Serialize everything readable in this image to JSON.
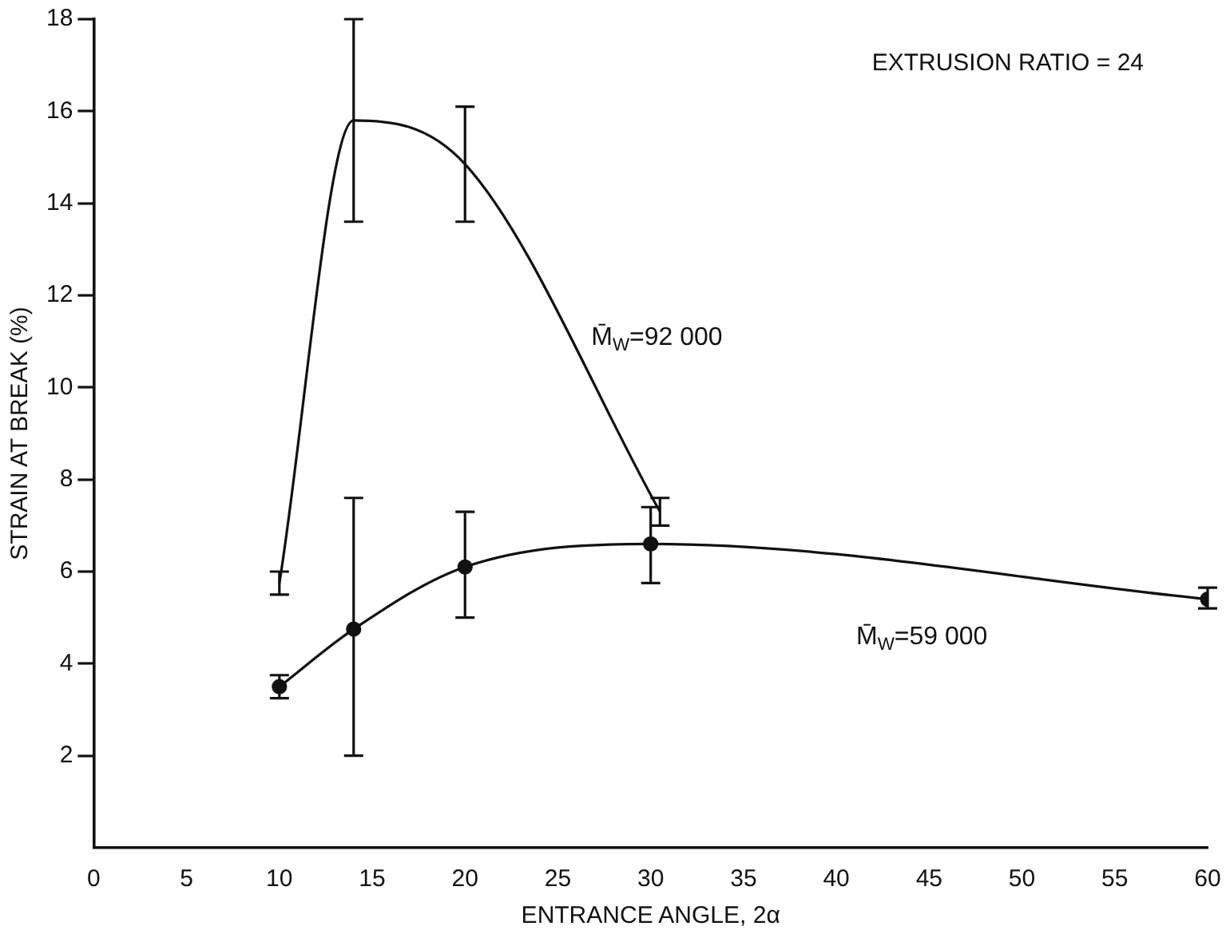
{
  "chart_data": {
    "type": "line",
    "xlabel": "ENTRANCE ANGLE, 2α",
    "ylabel": "STRAIN AT BREAK (%)",
    "xlim": [
      0,
      60
    ],
    "xticks": [
      0,
      5,
      10,
      15,
      20,
      25,
      30,
      35,
      40,
      45,
      50,
      55,
      60
    ],
    "ylim": [
      0,
      18
    ],
    "yticks": [
      2,
      4,
      6,
      8,
      10,
      12,
      14,
      16,
      18
    ],
    "grid": false,
    "legend": false,
    "line_style": "solid",
    "annotations": [
      "EXTRUSION RATIO = 24"
    ],
    "series": [
      {
        "name": "M̄$_{W}$=92 000",
        "color": "#111111",
        "x": [
          10,
          14,
          20,
          30.5
        ],
        "values": [
          5.75,
          15.8,
          14.85,
          7.3
        ],
        "errors": [
          [
            5.5,
            6.0
          ],
          [
            13.6,
            18.0
          ],
          [
            13.6,
            16.1
          ],
          [
            7.0,
            7.6
          ]
        ]
      },
      {
        "name": "M̄$_{W}$=59 000",
        "color": "#111111",
        "marker": "circle",
        "x": [
          10,
          14,
          20,
          30,
          60
        ],
        "values": [
          3.5,
          4.75,
          6.1,
          6.6,
          5.4
        ],
        "errors": [
          [
            3.25,
            3.75
          ],
          [
            2.0,
            7.6
          ],
          [
            5.0,
            7.3
          ],
          [
            5.75,
            7.4
          ],
          [
            5.2,
            5.65
          ]
        ]
      }
    ]
  }
}
